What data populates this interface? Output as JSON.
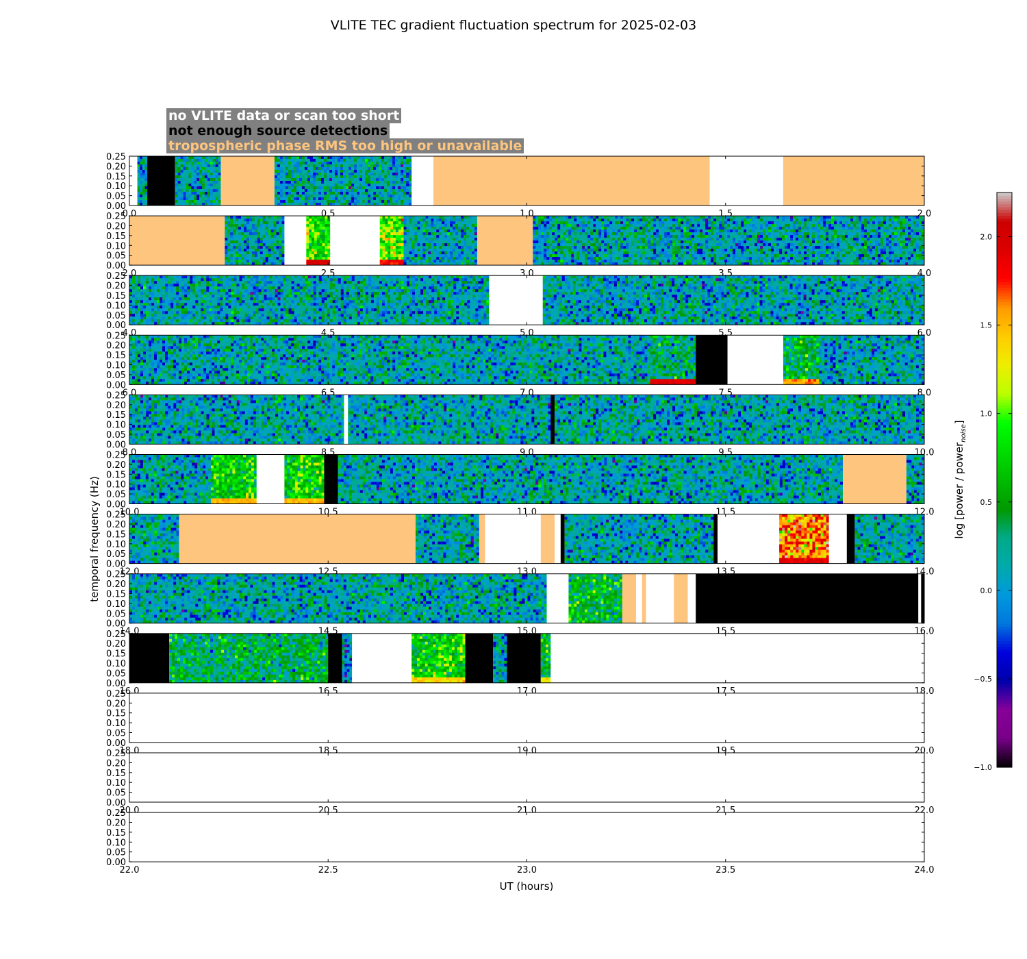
{
  "chart_data": {
    "type": "heatmap",
    "title": "VLITE TEC gradient fluctuation spectrum for 2025-02-03",
    "xlabel": "UT (hours)",
    "ylabel": "temporal frequency (Hz)",
    "colorbar_label": "log [power / power",
    "colorbar_label_sub": "noise",
    "colorbar_label_close": "]",
    "colorbar_range": [
      -1.0,
      2.25
    ],
    "colorbar_ticks": [
      "−1.0",
      "−0.5",
      "0.0",
      "0.5",
      "1.0",
      "1.5",
      "2.0"
    ],
    "colormap": "nipy_spectral",
    "ylim": [
      0,
      0.25
    ],
    "y_ticks": [
      "0.00",
      "0.05",
      "0.10",
      "0.15",
      "0.20",
      "0.25"
    ],
    "legend": [
      {
        "label": "no VLITE data or scan too short",
        "color": "#ffffff"
      },
      {
        "label": "not enough source detections",
        "color": "#000000"
      },
      {
        "label": "tropospheric phase RMS too high or unavailable",
        "color": "#fec57f"
      }
    ],
    "panels": [
      {
        "range": [
          0,
          2
        ],
        "ticks": [
          "0.0",
          "0.5",
          "1.0",
          "1.5",
          "2.0"
        ],
        "segments": [
          {
            "x0": 0.0,
            "x1": 0.02,
            "state": "nodata"
          },
          {
            "x0": 0.02,
            "x1": 0.045,
            "state": "spectrum"
          },
          {
            "x0": 0.045,
            "x1": 0.115,
            "state": "nodetect"
          },
          {
            "x0": 0.115,
            "x1": 0.23,
            "state": "spectrum"
          },
          {
            "x0": 0.23,
            "x1": 0.365,
            "state": "trop"
          },
          {
            "x0": 0.365,
            "x1": 0.71,
            "state": "spectrum"
          },
          {
            "x0": 0.71,
            "x1": 0.765,
            "state": "nodata"
          },
          {
            "x0": 0.765,
            "x1": 1.46,
            "state": "trop"
          },
          {
            "x0": 1.46,
            "x1": 1.645,
            "state": "nodata"
          },
          {
            "x0": 1.645,
            "x1": 2.0,
            "state": "trop"
          }
        ]
      },
      {
        "range": [
          2,
          4
        ],
        "ticks": [
          "2.0",
          "2.5",
          "3.0",
          "3.5",
          "4.0"
        ],
        "segments": [
          {
            "x0": 2.0,
            "x1": 2.24,
            "state": "trop"
          },
          {
            "x0": 2.24,
            "x1": 2.39,
            "state": "spectrum"
          },
          {
            "x0": 2.39,
            "x1": 2.445,
            "state": "nodata"
          },
          {
            "x0": 2.445,
            "x1": 2.505,
            "state": "spectrum",
            "level": 0.8,
            "lowlevel": 2.0
          },
          {
            "x0": 2.505,
            "x1": 2.63,
            "state": "nodata"
          },
          {
            "x0": 2.63,
            "x1": 2.69,
            "state": "spectrum",
            "level": 1.0,
            "lowlevel": 1.8
          },
          {
            "x0": 2.69,
            "x1": 2.875,
            "state": "spectrum"
          },
          {
            "x0": 2.875,
            "x1": 3.015,
            "state": "trop"
          },
          {
            "x0": 3.015,
            "x1": 4.0,
            "state": "spectrum"
          }
        ]
      },
      {
        "range": [
          4,
          6
        ],
        "ticks": [
          "4.0",
          "4.5",
          "5.0",
          "5.5",
          "6.0"
        ],
        "segments": [
          {
            "x0": 4.0,
            "x1": 4.905,
            "state": "spectrum"
          },
          {
            "x0": 4.905,
            "x1": 5.04,
            "state": "nodata"
          },
          {
            "x0": 5.04,
            "x1": 6.0,
            "state": "spectrum"
          }
        ]
      },
      {
        "range": [
          6,
          8
        ],
        "ticks": [
          "6.0",
          "6.5",
          "7.0",
          "7.5",
          "8.0"
        ],
        "segments": [
          {
            "x0": 6.0,
            "x1": 7.31,
            "state": "spectrum"
          },
          {
            "x0": 7.31,
            "x1": 7.425,
            "state": "spectrum",
            "level": 0.3,
            "lowlevel": 1.9
          },
          {
            "x0": 7.425,
            "x1": 7.505,
            "state": "nodetect"
          },
          {
            "x0": 7.505,
            "x1": 7.645,
            "state": "nodata"
          },
          {
            "x0": 7.645,
            "x1": 7.735,
            "state": "spectrum",
            "level": 0.4,
            "lowlevel": 1.6
          },
          {
            "x0": 7.735,
            "x1": 8.0,
            "state": "spectrum"
          }
        ]
      },
      {
        "range": [
          8,
          10
        ],
        "ticks": [
          "8.0",
          "8.5",
          "9.0",
          "9.5",
          "10.0"
        ],
        "segments": [
          {
            "x0": 8.0,
            "x1": 8.54,
            "state": "spectrum"
          },
          {
            "x0": 8.54,
            "x1": 8.55,
            "state": "nodata"
          },
          {
            "x0": 8.55,
            "x1": 9.06,
            "state": "spectrum"
          },
          {
            "x0": 9.06,
            "x1": 9.07,
            "state": "nodetect"
          },
          {
            "x0": 9.07,
            "x1": 10.0,
            "state": "spectrum"
          }
        ]
      },
      {
        "range": [
          10,
          12
        ],
        "ticks": [
          "10.0",
          "10.5",
          "11.0",
          "11.5",
          "12.0"
        ],
        "segments": [
          {
            "x0": 10.0,
            "x1": 10.205,
            "state": "spectrum"
          },
          {
            "x0": 10.205,
            "x1": 10.32,
            "state": "spectrum",
            "level": 0.7,
            "lowlevel": 1.5
          },
          {
            "x0": 10.32,
            "x1": 10.39,
            "state": "nodata"
          },
          {
            "x0": 10.39,
            "x1": 10.49,
            "state": "spectrum",
            "level": 0.7,
            "lowlevel": 1.5
          },
          {
            "x0": 10.49,
            "x1": 10.525,
            "state": "nodetect"
          },
          {
            "x0": 10.525,
            "x1": 11.795,
            "state": "spectrum"
          },
          {
            "x0": 11.795,
            "x1": 11.955,
            "state": "trop"
          },
          {
            "x0": 11.955,
            "x1": 12.0,
            "state": "spectrum"
          }
        ]
      },
      {
        "range": [
          12,
          14
        ],
        "ticks": [
          "12.0",
          "12.5",
          "13.0",
          "13.5",
          "14.0"
        ],
        "segments": [
          {
            "x0": 12.0,
            "x1": 12.125,
            "state": "spectrum"
          },
          {
            "x0": 12.125,
            "x1": 12.72,
            "state": "trop"
          },
          {
            "x0": 12.72,
            "x1": 12.88,
            "state": "spectrum"
          },
          {
            "x0": 12.88,
            "x1": 12.895,
            "state": "trop"
          },
          {
            "x0": 12.895,
            "x1": 13.035,
            "state": "nodata"
          },
          {
            "x0": 13.035,
            "x1": 13.07,
            "state": "trop"
          },
          {
            "x0": 13.07,
            "x1": 13.085,
            "state": "nodata"
          },
          {
            "x0": 13.085,
            "x1": 13.095,
            "state": "nodetect"
          },
          {
            "x0": 13.095,
            "x1": 13.47,
            "state": "spectrum"
          },
          {
            "x0": 13.47,
            "x1": 13.48,
            "state": "nodetect"
          },
          {
            "x0": 13.48,
            "x1": 13.635,
            "state": "nodata"
          },
          {
            "x0": 13.635,
            "x1": 13.76,
            "state": "spectrum",
            "level": 1.6,
            "lowlevel": 1.9
          },
          {
            "x0": 13.76,
            "x1": 13.805,
            "state": "nodata"
          },
          {
            "x0": 13.805,
            "x1": 13.825,
            "state": "nodetect"
          },
          {
            "x0": 13.825,
            "x1": 14.0,
            "state": "spectrum"
          }
        ]
      },
      {
        "range": [
          14,
          16
        ],
        "ticks": [
          "14.0",
          "14.5",
          "15.0",
          "15.5",
          "16.0"
        ],
        "segments": [
          {
            "x0": 14.0,
            "x1": 15.05,
            "state": "spectrum"
          },
          {
            "x0": 15.05,
            "x1": 15.105,
            "state": "nodata"
          },
          {
            "x0": 15.105,
            "x1": 15.24,
            "state": "spectrum",
            "level": 0.5
          },
          {
            "x0": 15.24,
            "x1": 15.275,
            "state": "trop"
          },
          {
            "x0": 15.275,
            "x1": 15.29,
            "state": "nodata"
          },
          {
            "x0": 15.29,
            "x1": 15.3,
            "state": "trop"
          },
          {
            "x0": 15.3,
            "x1": 15.37,
            "state": "nodata"
          },
          {
            "x0": 15.37,
            "x1": 15.405,
            "state": "trop"
          },
          {
            "x0": 15.405,
            "x1": 15.425,
            "state": "nodata"
          },
          {
            "x0": 15.425,
            "x1": 15.985,
            "state": "nodetect"
          },
          {
            "x0": 15.985,
            "x1": 15.992,
            "state": "nodata"
          },
          {
            "x0": 15.992,
            "x1": 16.0,
            "state": "nodetect"
          }
        ]
      },
      {
        "range": [
          16,
          18
        ],
        "ticks": [
          "16.0",
          "16.5",
          "17.0",
          "17.5",
          "18.0"
        ],
        "segments": [
          {
            "x0": 16.0,
            "x1": 16.1,
            "state": "nodetect"
          },
          {
            "x0": 16.1,
            "x1": 16.5,
            "state": "spectrum",
            "level": 0.4
          },
          {
            "x0": 16.5,
            "x1": 16.535,
            "state": "nodetect"
          },
          {
            "x0": 16.535,
            "x1": 16.56,
            "state": "spectrum",
            "level": 0.0
          },
          {
            "x0": 16.56,
            "x1": 16.71,
            "state": "nodata"
          },
          {
            "x0": 16.71,
            "x1": 16.845,
            "state": "spectrum",
            "level": 0.7,
            "lowlevel": 1.4
          },
          {
            "x0": 16.845,
            "x1": 16.915,
            "state": "nodetect"
          },
          {
            "x0": 16.915,
            "x1": 16.95,
            "state": "spectrum"
          },
          {
            "x0": 16.95,
            "x1": 17.035,
            "state": "nodetect"
          },
          {
            "x0": 17.035,
            "x1": 17.06,
            "state": "spectrum",
            "level": 0.5,
            "lowlevel": 1.3
          },
          {
            "x0": 17.06,
            "x1": 18.0,
            "state": "nodata"
          }
        ]
      },
      {
        "range": [
          18,
          20
        ],
        "ticks": [
          "18.0",
          "18.5",
          "19.0",
          "19.5",
          "20.0"
        ],
        "segments": [
          {
            "x0": 18.0,
            "x1": 20.0,
            "state": "nodata"
          }
        ]
      },
      {
        "range": [
          20,
          22
        ],
        "ticks": [
          "20.0",
          "20.5",
          "21.0",
          "21.5",
          "22.0"
        ],
        "segments": [
          {
            "x0": 20.0,
            "x1": 22.0,
            "state": "nodata"
          }
        ]
      },
      {
        "range": [
          22,
          24
        ],
        "ticks": [
          "22.0",
          "22.5",
          "23.0",
          "23.5",
          "24.0"
        ],
        "segments": [
          {
            "x0": 22.0,
            "x1": 24.0,
            "state": "nodata"
          }
        ]
      }
    ],
    "state_colors": {
      "nodata": "#ffffff",
      "nodetect": "#000000",
      "trop": "#fec57f"
    }
  }
}
